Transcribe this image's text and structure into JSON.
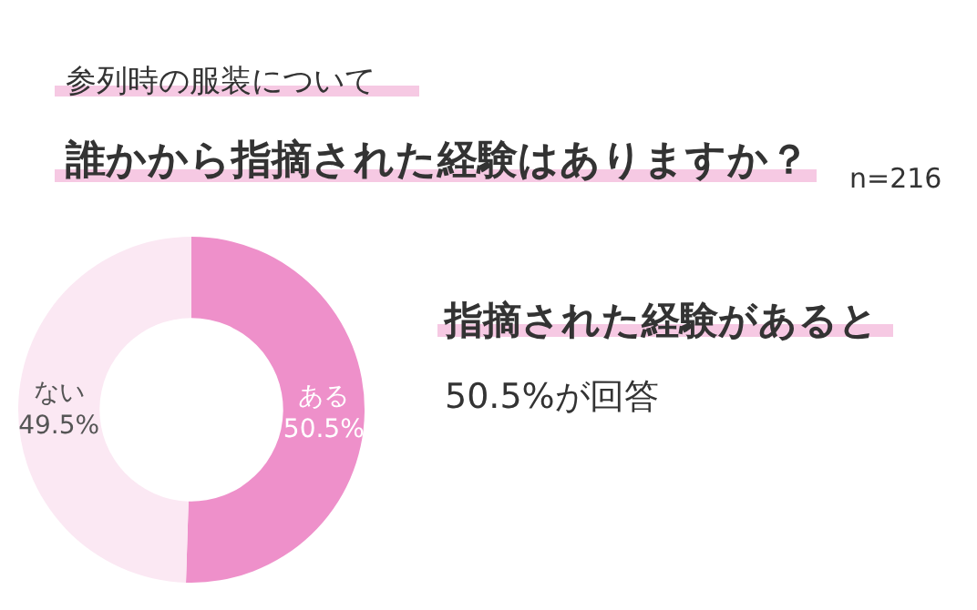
{
  "chart_data": {
    "type": "donut",
    "title": "参列時の服装について",
    "subtitle": "誰かから指摘された経験はありますか？",
    "categories": [
      "ある",
      "ない"
    ],
    "values": [
      50.5,
      49.5
    ],
    "colors": [
      "#ee90ca",
      "#fbe8f3"
    ],
    "value_labels": [
      "50.5%",
      "49.5%"
    ],
    "annotations": [
      "n=216",
      "指摘された経験があると",
      "50.5%が回答"
    ]
  }
}
